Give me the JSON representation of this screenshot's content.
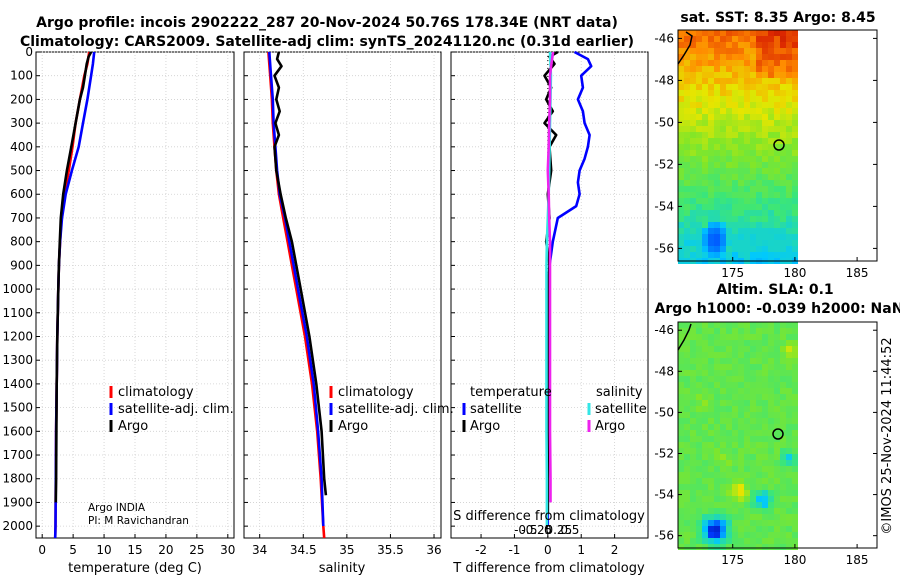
{
  "title": {
    "line1": "Argo profile: incois 2902222_287 20-Nov-2024 50.76S 178.34E (NRT data)",
    "line2": "Climatology: CARS2009. Satellite-adj clim: synTS_20241120.nc (0.31d earlier)"
  },
  "depth_ticks": [
    "0",
    "100",
    "200",
    "300",
    "400",
    "500",
    "600",
    "700",
    "800",
    "900",
    "1000",
    "1100",
    "1200",
    "1300",
    "1400",
    "1500",
    "1600",
    "1700",
    "1800",
    "1900",
    "2000"
  ],
  "colors": {
    "climatology": "#ff0000",
    "satellite": "#0000ff",
    "argo": "#000000",
    "sat_t": "#33e6e6",
    "argo_s": "#ee22ee"
  },
  "chart_data": [
    {
      "type": "line",
      "name": "temperature",
      "xlabel": "temperature (deg C)",
      "ylabel": "depth",
      "xlim": [
        -1,
        31
      ],
      "ylim": [
        2050,
        0
      ],
      "xticks": [
        0,
        5,
        10,
        15,
        20,
        25,
        30
      ],
      "xtick_labels": [
        "0",
        "5",
        "10",
        "15",
        "20",
        "25",
        "30"
      ],
      "legend": {
        "placement": "bottom-right",
        "entries": [
          "climatology",
          "satellite-adj. clim.",
          "Argo"
        ]
      },
      "series": [
        {
          "name": "climatology",
          "color": "#ff0000",
          "depth": [
            0,
            50,
            100,
            200,
            300,
            400,
            500,
            600,
            700,
            800,
            900,
            1000,
            1200,
            1400,
            1600,
            1800,
            2000,
            2050
          ],
          "values": [
            7.6,
            7.3,
            6.8,
            6.1,
            5.4,
            4.9,
            4.3,
            3.6,
            3.1,
            2.9,
            2.7,
            2.6,
            2.45,
            2.35,
            2.25,
            2.2,
            2.15,
            2.1
          ]
        },
        {
          "name": "satellite-adj. clim.",
          "color": "#0000ff",
          "depth": [
            0,
            50,
            100,
            200,
            300,
            400,
            500,
            600,
            700,
            800,
            900,
            1000,
            1200,
            1400,
            1600,
            1800,
            2000,
            2050
          ],
          "values": [
            8.4,
            8.2,
            7.9,
            7.3,
            6.6,
            5.9,
            4.8,
            3.8,
            3.2,
            2.9,
            2.7,
            2.6,
            2.45,
            2.35,
            2.25,
            2.2,
            2.15,
            2.1
          ]
        },
        {
          "name": "Argo",
          "color": "#000000",
          "depth": [
            0,
            20,
            50,
            100,
            150,
            200,
            300,
            400,
            500,
            600,
            650,
            700,
            800,
            900,
            1000,
            1200,
            1400,
            1600,
            1800,
            1900
          ],
          "values": [
            7.9,
            7.5,
            7.2,
            6.9,
            6.6,
            6.1,
            5.4,
            4.7,
            4.0,
            3.4,
            3.2,
            3.0,
            2.85,
            2.7,
            2.6,
            2.45,
            2.35,
            2.3,
            2.25,
            2.2
          ]
        }
      ]
    },
    {
      "type": "line",
      "name": "salinity",
      "xlabel": "salinity",
      "ylabel": "depth",
      "xlim": [
        33.82,
        36.08
      ],
      "ylim": [
        2050,
        0
      ],
      "xticks": [
        34,
        34.5,
        35,
        35.5,
        36
      ],
      "xtick_labels": [
        "34",
        "34.5",
        "35",
        "35.5",
        "36"
      ],
      "legend": {
        "placement": "bottom-right",
        "entries": [
          "climatology",
          "satellite-adj. clim.",
          "Argo"
        ]
      },
      "series": [
        {
          "name": "climatology",
          "color": "#ff0000",
          "depth": [
            0,
            100,
            200,
            300,
            400,
            500,
            600,
            700,
            800,
            900,
            1000,
            1200,
            1400,
            1600,
            1800,
            2000,
            2050
          ],
          "values": [
            34.1,
            34.12,
            34.14,
            34.15,
            34.17,
            34.19,
            34.22,
            34.27,
            34.32,
            34.37,
            34.42,
            34.52,
            34.6,
            34.66,
            34.7,
            34.73,
            34.74
          ]
        },
        {
          "name": "satellite-adj. clim.",
          "color": "#0000ff",
          "depth": [
            0,
            100,
            200,
            300,
            400,
            500,
            600,
            700,
            800,
            900,
            1000,
            1200,
            1400,
            1600,
            1800,
            2000
          ],
          "values": [
            34.11,
            34.13,
            34.15,
            34.16,
            34.18,
            34.2,
            34.23,
            34.29,
            34.34,
            34.39,
            34.44,
            34.54,
            34.62,
            34.67,
            34.71,
            34.73
          ]
        },
        {
          "name": "Argo",
          "color": "#000000",
          "depth": [
            0,
            30,
            60,
            100,
            150,
            200,
            250,
            300,
            350,
            400,
            500,
            600,
            700,
            800,
            900,
            1000,
            1200,
            1400,
            1600,
            1800,
            1870
          ],
          "values": [
            34.22,
            34.2,
            34.25,
            34.17,
            34.22,
            34.19,
            34.23,
            34.18,
            34.22,
            34.17,
            34.19,
            34.24,
            34.3,
            34.37,
            34.42,
            34.47,
            34.57,
            34.65,
            34.71,
            34.74,
            34.76
          ]
        }
      ]
    },
    {
      "type": "line",
      "name": "difference",
      "xlabel": "T difference from climatology",
      "x2label": "S difference from climatology",
      "ylabel": "depth",
      "xlim": [
        -2.9,
        3.0
      ],
      "ylim": [
        2050,
        0
      ],
      "xticks": [
        -2,
        -1,
        0,
        1,
        2
      ],
      "xtick_labels": [
        "-2",
        "-1",
        "0",
        "1",
        "2"
      ],
      "x2ticks": [
        -0.5,
        -0.25,
        0,
        0.25,
        0.5
      ],
      "x2tick_labels": [
        "-0.5",
        "-0.25",
        "0",
        "0.25",
        "0.5"
      ],
      "legend": {
        "placement": "bottom",
        "entries": [
          "temperature",
          "satellite",
          "Argo",
          "salinity",
          "satellite",
          "Argo"
        ]
      },
      "series": [
        {
          "name": "temperature satellite",
          "color": "#0000ff",
          "depth": [
            0,
            30,
            60,
            100,
            150,
            200,
            250,
            300,
            350,
            400,
            450,
            500,
            550,
            600,
            650,
            700,
            800,
            900,
            1000,
            1200,
            1400,
            1600,
            1800,
            2000
          ],
          "values": [
            0.8,
            1.2,
            1.3,
            1.0,
            1.05,
            0.9,
            1.05,
            1.1,
            1.25,
            1.2,
            1.1,
            0.95,
            0.9,
            0.95,
            0.85,
            0.3,
            0.15,
            0.05,
            0.02,
            0.0,
            0.0,
            0.0,
            0.0,
            0.0
          ]
        },
        {
          "name": "temperature Argo",
          "color": "#000000",
          "depth": [
            0,
            20,
            50,
            100,
            150,
            200,
            250,
            300,
            350,
            400,
            500,
            600,
            700,
            800,
            900,
            1000,
            1200,
            1400,
            1600,
            1800,
            1950
          ],
          "values": [
            0.3,
            0.05,
            0.2,
            -0.1,
            0.1,
            -0.05,
            0.15,
            -0.1,
            0.25,
            0.05,
            0.1,
            0.0,
            0.05,
            -0.05,
            0.05,
            0.0,
            0.02,
            0.0,
            0.02,
            0.0,
            0.0
          ]
        },
        {
          "name": "salinity satellite",
          "color": "#33e6e6",
          "depth": [
            0,
            50,
            100,
            200,
            300,
            400,
            500,
            600,
            700,
            800,
            900,
            1000,
            1200,
            1400,
            1600,
            1800,
            2000
          ],
          "values": [
            0.05,
            0.06,
            0.07,
            0.06,
            0.05,
            0.04,
            0.03,
            0.02,
            0.0,
            -0.02,
            -0.03,
            -0.03,
            -0.03,
            -0.03,
            -0.03,
            -0.02,
            -0.02
          ]
        },
        {
          "name": "salinity Argo",
          "color": "#ee22ee",
          "depth": [
            0,
            50,
            100,
            200,
            300,
            400,
            500,
            600,
            700,
            800,
            900,
            1000,
            1200,
            1400,
            1600,
            1800,
            1900
          ],
          "values": [
            0.12,
            0.08,
            0.05,
            0.05,
            0.03,
            0.02,
            0.0,
            0.02,
            0.03,
            0.05,
            0.05,
            0.05,
            0.05,
            0.05,
            0.05,
            0.06,
            0.06
          ]
        }
      ]
    }
  ],
  "maps": {
    "sst": {
      "title": "sat. SST: 8.35 Argo: 8.45",
      "yticks": [
        "-46",
        "-48",
        "-50",
        "-52",
        "-54",
        "-56"
      ],
      "xticks": [
        "175",
        "180",
        "185"
      ]
    },
    "sla": {
      "title1": "Altim. SLA: 0.1",
      "title2": "Argo h1000: -0.039 h2000: NaN",
      "yticks": [
        "-46",
        "-48",
        "-50",
        "-52",
        "-54",
        "-56"
      ],
      "xticks": [
        "175",
        "180",
        "185"
      ]
    }
  },
  "legends": {
    "clim": "climatology",
    "sat": "satellite-adj. clim.",
    "argo": "Argo",
    "temperature": "temperature",
    "salinity": "salinity",
    "satellite": "satellite",
    "argo2": "Argo"
  },
  "pi": {
    "line1": "Argo INDIA",
    "line2": "PI: M Ravichandran"
  },
  "watermark": "©IMOS 25-Nov-2024 11:44:52"
}
